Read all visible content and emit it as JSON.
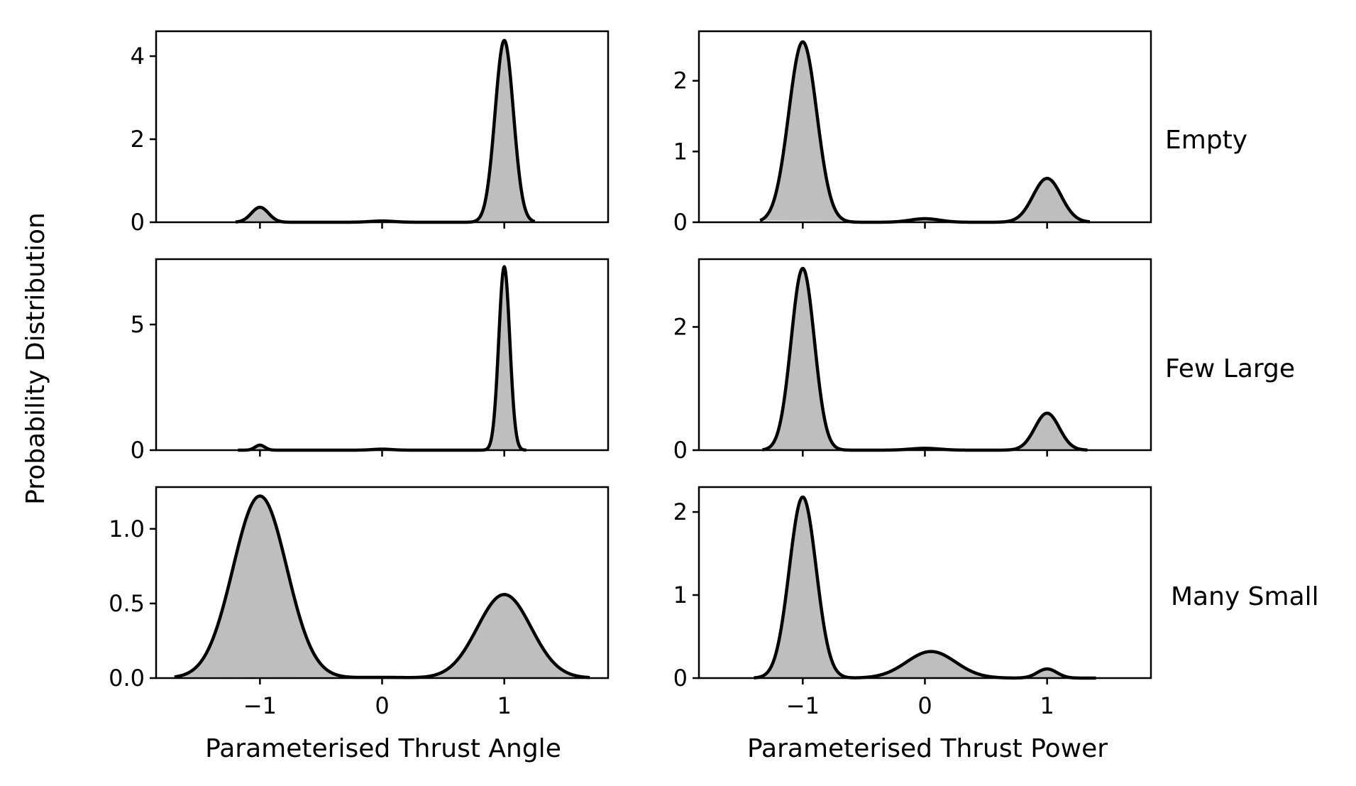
{
  "figure": {
    "ylabel": "Probability Distribution",
    "columns": [
      "Parameterised Thrust Angle",
      "Parameterised Thrust Power"
    ],
    "rows": [
      "Empty",
      "Few Large",
      "Many Small"
    ]
  },
  "colors": {
    "fill": "#bebebe",
    "line": "#000000",
    "background": "#ffffff"
  },
  "chart_data": [
    {
      "type": "area",
      "row": "Empty",
      "column": "Parameterised Thrust Angle",
      "x_range": [
        -1.2,
        1.25
      ],
      "xlim": [
        -1.85,
        1.85
      ],
      "ylim": [
        0,
        4.6
      ],
      "xticks": [
        -1,
        0,
        1
      ],
      "xtick_labels": [
        "−1",
        "0",
        "1"
      ],
      "show_xtick_labels": false,
      "yticks": [
        0,
        2,
        4
      ],
      "ytick_labels": [
        "0",
        "2",
        "4"
      ],
      "components": [
        {
          "mu": -1.0,
          "sigma": 0.07,
          "peak": 0.36
        },
        {
          "mu": 0.0,
          "sigma": 0.1,
          "peak": 0.03
        },
        {
          "mu": 1.0,
          "sigma": 0.075,
          "peak": 4.38
        }
      ]
    },
    {
      "type": "area",
      "row": "Empty",
      "column": "Parameterised Thrust Power",
      "x_range": [
        -1.35,
        1.35
      ],
      "xlim": [
        -1.85,
        1.85
      ],
      "ylim": [
        0,
        2.7
      ],
      "xticks": [
        -1,
        0,
        1
      ],
      "xtick_labels": [
        "−1",
        "0",
        "1"
      ],
      "show_xtick_labels": false,
      "yticks": [
        0,
        1,
        2
      ],
      "ytick_labels": [
        "0",
        "1",
        "2"
      ],
      "components": [
        {
          "mu": -1.0,
          "sigma": 0.115,
          "peak": 2.55
        },
        {
          "mu": 0.0,
          "sigma": 0.12,
          "peak": 0.05
        },
        {
          "mu": 1.0,
          "sigma": 0.115,
          "peak": 0.62
        }
      ]
    },
    {
      "type": "area",
      "row": "Few Large",
      "column": "Parameterised Thrust Angle",
      "x_range": [
        -1.18,
        1.18
      ],
      "xlim": [
        -1.85,
        1.85
      ],
      "ylim": [
        0,
        7.6
      ],
      "xticks": [
        -1,
        0,
        1
      ],
      "xtick_labels": [
        "−1",
        "0",
        "1"
      ],
      "show_xtick_labels": false,
      "yticks": [
        0,
        5
      ],
      "ytick_labels": [
        "0",
        "5"
      ],
      "components": [
        {
          "mu": -1.0,
          "sigma": 0.04,
          "peak": 0.2
        },
        {
          "mu": 0.0,
          "sigma": 0.08,
          "peak": 0.04
        },
        {
          "mu": 1.0,
          "sigma": 0.045,
          "peak": 7.3
        }
      ]
    },
    {
      "type": "area",
      "row": "Few Large",
      "column": "Parameterised Thrust Power",
      "x_range": [
        -1.33,
        1.33
      ],
      "xlim": [
        -1.85,
        1.85
      ],
      "ylim": [
        0,
        3.1
      ],
      "xticks": [
        -1,
        0,
        1
      ],
      "xtick_labels": [
        "−1",
        "0",
        "1"
      ],
      "show_xtick_labels": false,
      "yticks": [
        0,
        2
      ],
      "ytick_labels": [
        "0",
        "2"
      ],
      "components": [
        {
          "mu": -1.0,
          "sigma": 0.095,
          "peak": 2.95
        },
        {
          "mu": 0.0,
          "sigma": 0.12,
          "peak": 0.03
        },
        {
          "mu": 1.0,
          "sigma": 0.1,
          "peak": 0.6
        }
      ]
    },
    {
      "type": "area",
      "row": "Many Small",
      "column": "Parameterised Thrust Angle",
      "x_range": [
        -1.7,
        1.7
      ],
      "xlim": [
        -1.85,
        1.85
      ],
      "ylim": [
        0,
        1.28
      ],
      "xticks": [
        -1,
        0,
        1
      ],
      "xtick_labels": [
        "−1",
        "0",
        "1"
      ],
      "show_xtick_labels": true,
      "yticks": [
        0.0,
        0.5,
        1.0
      ],
      "ytick_labels": [
        "0.0",
        "0.5",
        "1.0"
      ],
      "xlabel": "Parameterised Thrust Angle",
      "components": [
        {
          "mu": -1.0,
          "sigma": 0.22,
          "peak": 1.22
        },
        {
          "mu": 0.0,
          "sigma": 0.2,
          "peak": 0.005
        },
        {
          "mu": 1.0,
          "sigma": 0.22,
          "peak": 0.56
        }
      ]
    },
    {
      "type": "area",
      "row": "Many Small",
      "column": "Parameterised Thrust Power",
      "x_range": [
        -1.4,
        1.4
      ],
      "xlim": [
        -1.85,
        1.85
      ],
      "ylim": [
        0,
        2.3
      ],
      "xticks": [
        -1,
        0,
        1
      ],
      "xtick_labels": [
        "−1",
        "0",
        "1"
      ],
      "show_xtick_labels": true,
      "yticks": [
        0,
        1,
        2
      ],
      "ytick_labels": [
        "0",
        "1",
        "2"
      ],
      "xlabel": "Parameterised Thrust Power",
      "components": [
        {
          "mu": -1.0,
          "sigma": 0.11,
          "peak": 2.18
        },
        {
          "mu": 0.05,
          "sigma": 0.2,
          "peak": 0.32
        },
        {
          "mu": 1.0,
          "sigma": 0.08,
          "peak": 0.11
        }
      ]
    }
  ]
}
